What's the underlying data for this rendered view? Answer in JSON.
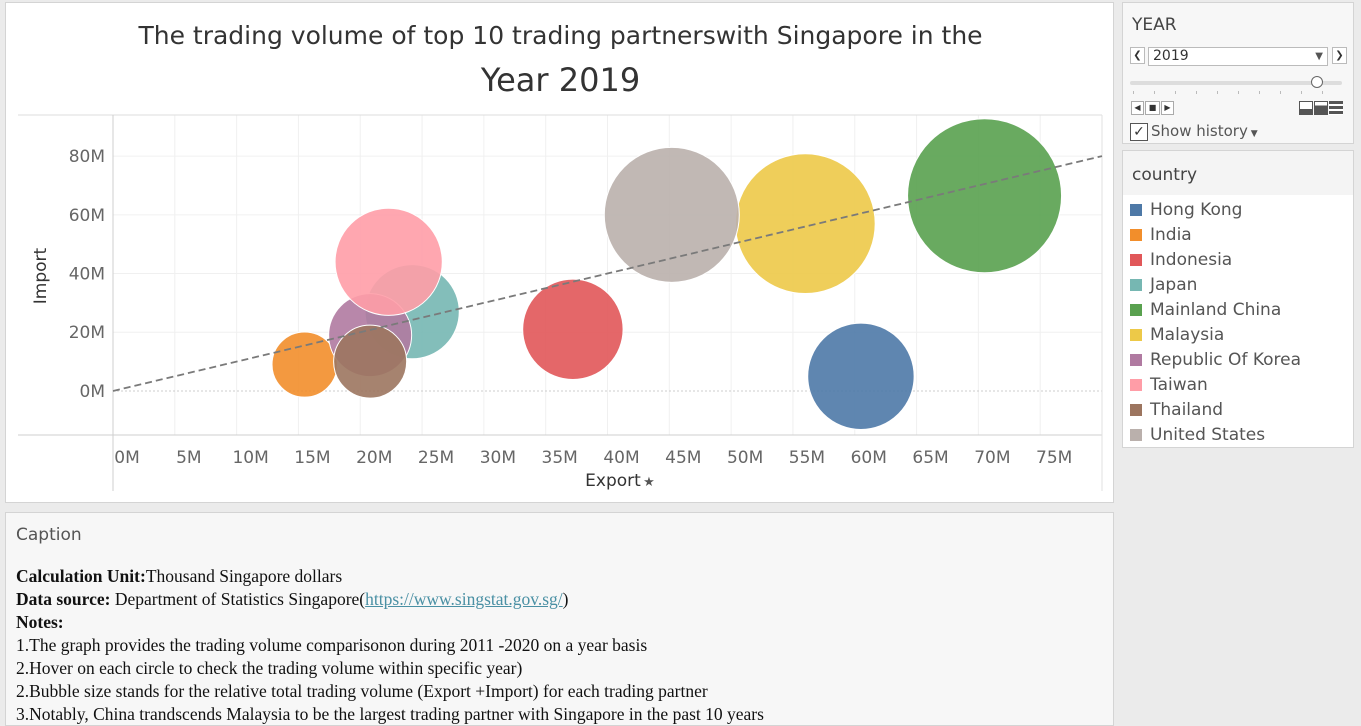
{
  "chart": {
    "title_line1": "The trading volume of top 10 trading partnerswith Singapore  in the",
    "title_line2": "Year  2019",
    "xlabel": "Export",
    "ylabel": "Import"
  },
  "chart_data": {
    "type": "scatter",
    "title": "The trading volume of top 10 trading partnerswith Singapore  in the Year  2019",
    "xlabel": "Export",
    "ylabel": "Import",
    "xlim": [
      0,
      80
    ],
    "ylim": [
      -15,
      94
    ],
    "x_unit": "M",
    "y_unit": "M",
    "x_ticks": [
      "0M",
      "5M",
      "10M",
      "15M",
      "20M",
      "25M",
      "30M",
      "35M",
      "40M",
      "45M",
      "50M",
      "55M",
      "60M",
      "65M",
      "70M",
      "75M"
    ],
    "y_ticks": [
      "0M",
      "20M",
      "40M",
      "60M",
      "80M"
    ],
    "grid": true,
    "legend_position": "right",
    "bubble_size": "total trading volume (Export + Import)",
    "points": [
      {
        "name": "Hong Kong",
        "x": 60.5,
        "y": 5,
        "color": "#4e79a7"
      },
      {
        "name": "India",
        "x": 15.5,
        "y": 9,
        "color": "#f28e2b"
      },
      {
        "name": "Indonesia",
        "x": 37.2,
        "y": 21,
        "color": "#e15759"
      },
      {
        "name": "Japan",
        "x": 24.2,
        "y": 27,
        "color": "#76b7b2"
      },
      {
        "name": "Mainland China",
        "x": 70.5,
        "y": 66.5,
        "color": "#59a14f"
      },
      {
        "name": "Malaysia",
        "x": 56,
        "y": 57,
        "color": "#edc948"
      },
      {
        "name": "Republic Of Korea",
        "x": 20.8,
        "y": 19,
        "color": "#b07aa1"
      },
      {
        "name": "Taiwan",
        "x": 22.3,
        "y": 44,
        "color": "#ff9da7"
      },
      {
        "name": "Thailand",
        "x": 20.8,
        "y": 10,
        "color": "#9c755f"
      },
      {
        "name": "United States",
        "x": 45.2,
        "y": 60,
        "color": "#bab0ac"
      }
    ],
    "trend_line": {
      "x": [
        0,
        80
      ],
      "y": [
        0,
        80
      ],
      "style": "dashed"
    }
  },
  "year_filter": {
    "title": "YEAR",
    "selected": "2019",
    "show_history": "Show history"
  },
  "legend": {
    "title": "country",
    "items": [
      {
        "label": "Hong Kong",
        "color": "#4e79a7"
      },
      {
        "label": "India",
        "color": "#f28e2b"
      },
      {
        "label": "Indonesia",
        "color": "#e15759"
      },
      {
        "label": "Japan",
        "color": "#76b7b2"
      },
      {
        "label": "Mainland China",
        "color": "#59a14f"
      },
      {
        "label": "Malaysia",
        "color": "#edc948"
      },
      {
        "label": "Republic Of Korea",
        "color": "#b07aa1"
      },
      {
        "label": "Taiwan",
        "color": "#ff9da7"
      },
      {
        "label": "Thailand",
        "color": "#9c755f"
      },
      {
        "label": "United States",
        "color": "#bab0ac"
      }
    ]
  },
  "caption": {
    "title": "Caption",
    "unit_label": "Calculation Unit:",
    "unit_value": "Thousand Singapore dollars",
    "source_label": "Data source:",
    "source_value": " Department of Statistics Singapore(",
    "source_link": "https://www.singstat.gov.sg/",
    "source_close": ")",
    "notes_label": "Notes:",
    "notes": [
      "1.The graph provides the trading volume comparisonon during 2011 -2020  on a year basis",
      "2.Hover on each circle to check the trading volume within specific year)",
      "2.Bubble size stands for the relative total trading volume (Export +Import) for each trading partner",
      "3.Notably, China  trandscends  Malaysia  to be the largest trading  partner with Singapore in the past 10 years"
    ]
  }
}
